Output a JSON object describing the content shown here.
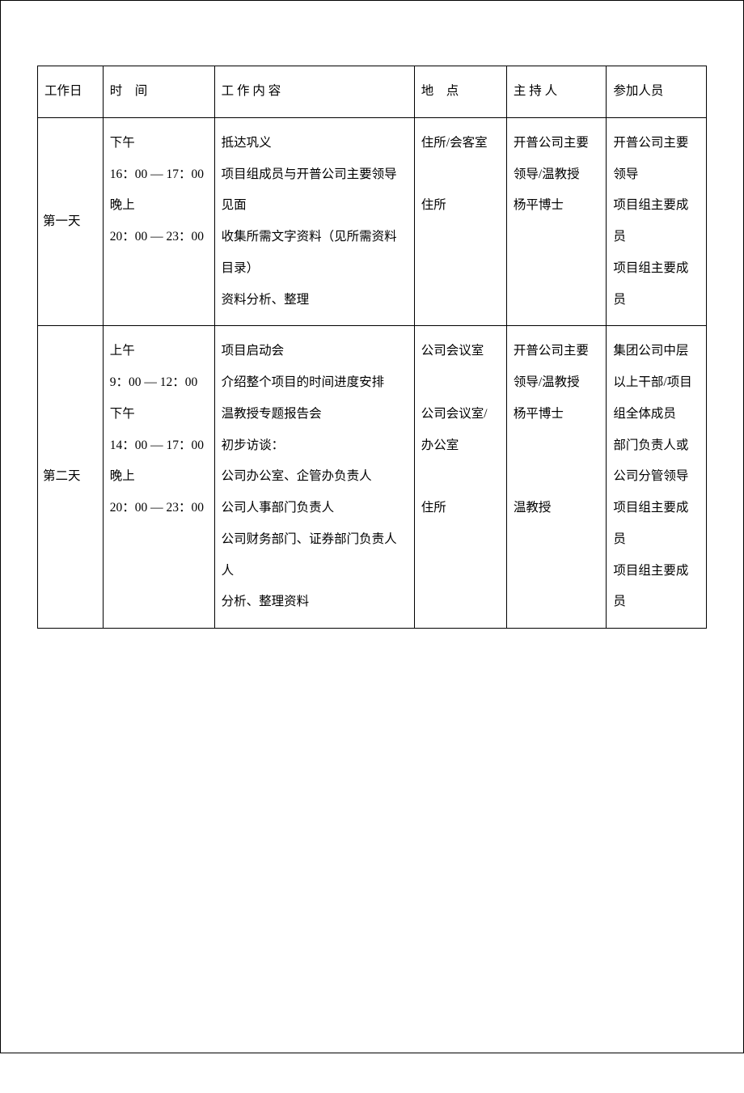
{
  "table": {
    "columns": {
      "day": "工作日",
      "time": "时　间",
      "content": "工 作 内 容",
      "place": "地　点",
      "host": "主 持 人",
      "attend": "参加人员"
    },
    "rows": [
      {
        "day": "第一天",
        "time": "下午\n16：00 — 17：00\n晚上\n20：00 — 23：00",
        "content": "抵达巩义\n项目组成员与开普公司主要领导见面\n收集所需文字资料（见所需资料目录）\n资料分析、整理",
        "place": "住所/会客室\n\n住所",
        "host": "开普公司主要领导/温教授\n杨平博士",
        "attend": "开普公司主要领导\n项目组主要成员\n项目组主要成员"
      },
      {
        "day": "第二天",
        "time": "上午\n 9：00 — 12：00\n下午\n14：00 — 17：00\n晚上\n20：00 — 23：00",
        "content": "项目启动会\n介绍整个项目的时间进度安排\n温教授专题报告会\n初步访谈：\n公司办公室、企管办负责人\n公司人事部门负责人\n公司财务部门、证券部门负责人人\n分析、整理资料",
        "place": "公司会议室\n\n公司会议室/办公室\n\n住所",
        "host": "开普公司主要领导/温教授\n杨平博士\n\n\n温教授",
        "attend": "集团公司中层以上干部/项目组全体成员\n部门负责人或公司分管领导\n项目组主要成员\n项目组主要成员"
      }
    ]
  },
  "style": {
    "border_color": "#000000",
    "background_color": "#ffffff",
    "text_color": "#000000",
    "font_size_pt": 12,
    "line_height": 2.5
  }
}
